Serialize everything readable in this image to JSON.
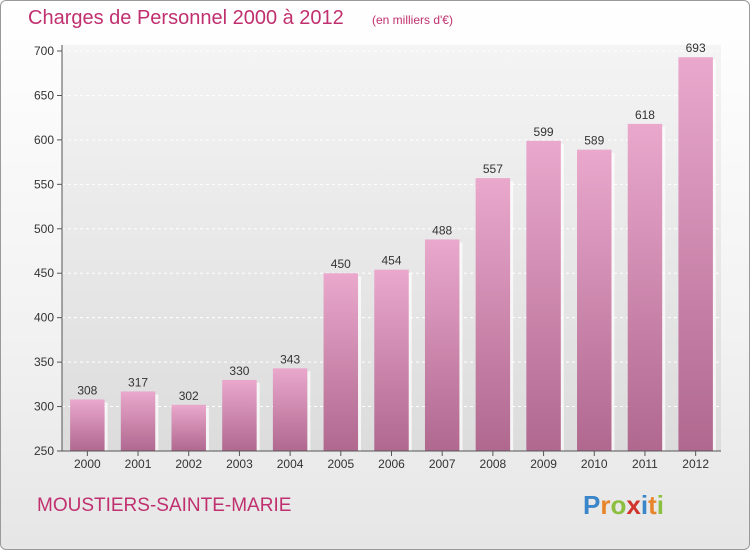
{
  "header": {
    "title": "Charges de Personnel 2000 à 2012",
    "subtitle": "(en milliers d'€)"
  },
  "footer": {
    "commune": "MOUSTIERS-SAINTE-MARIE",
    "logo_letters": [
      "P",
      "r",
      "o",
      "x",
      "i",
      "t",
      "i"
    ],
    "logo_colors": [
      "#3a86c8",
      "#e8852a",
      "#8cbf3f",
      "#d0342c",
      "#3a86c8",
      "#e8852a",
      "#8cbf3f"
    ]
  },
  "colors": {
    "accent": "#c0306f",
    "bar_top": "#eaa8cd",
    "bar_bottom": "#b0688f"
  },
  "chart_data": {
    "type": "bar",
    "categories": [
      "2000",
      "2001",
      "2002",
      "2003",
      "2004",
      "2005",
      "2006",
      "2007",
      "2008",
      "2009",
      "2010",
      "2011",
      "2012"
    ],
    "values": [
      308,
      317,
      302,
      330,
      343,
      450,
      454,
      488,
      557,
      599,
      589,
      618,
      693
    ],
    "title": "Charges de Personnel 2000 à 2012",
    "ylim": [
      250,
      700
    ],
    "yticks": [
      250,
      300,
      350,
      400,
      450,
      500,
      550,
      600,
      650,
      700
    ],
    "grid": true
  }
}
